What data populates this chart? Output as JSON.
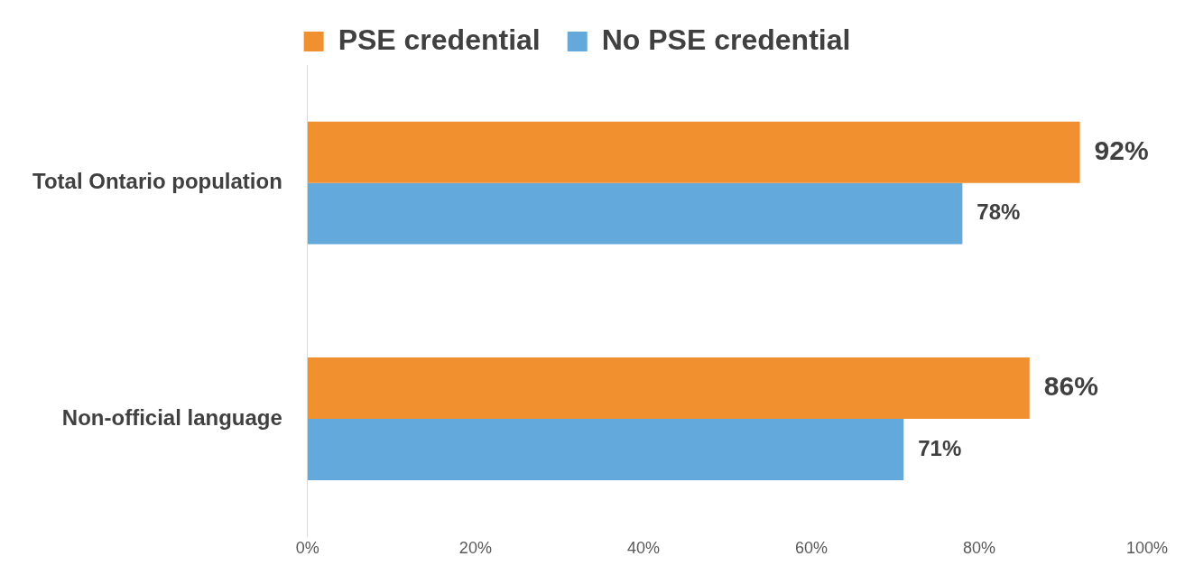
{
  "chart_data": {
    "type": "bar",
    "orientation": "horizontal",
    "categories": [
      "Total Ontario population",
      "Non-official language"
    ],
    "series": [
      {
        "name": "PSE credential",
        "color": "#f0902f",
        "values": [
          92,
          86
        ],
        "value_labels": [
          "92%",
          "86%"
        ]
      },
      {
        "name": "No PSE credential",
        "color": "#63a9dc",
        "values": [
          78,
          71
        ],
        "value_labels": [
          "78%",
          "71%"
        ]
      }
    ],
    "xlim": [
      0,
      100
    ],
    "xticks": [
      {
        "value": 0,
        "label": "0%"
      },
      {
        "value": 20,
        "label": "20%"
      },
      {
        "value": 40,
        "label": "40%"
      },
      {
        "value": 60,
        "label": "60%"
      },
      {
        "value": 80,
        "label": "80%"
      },
      {
        "value": 100,
        "label": "100%"
      }
    ],
    "legend": "top"
  }
}
